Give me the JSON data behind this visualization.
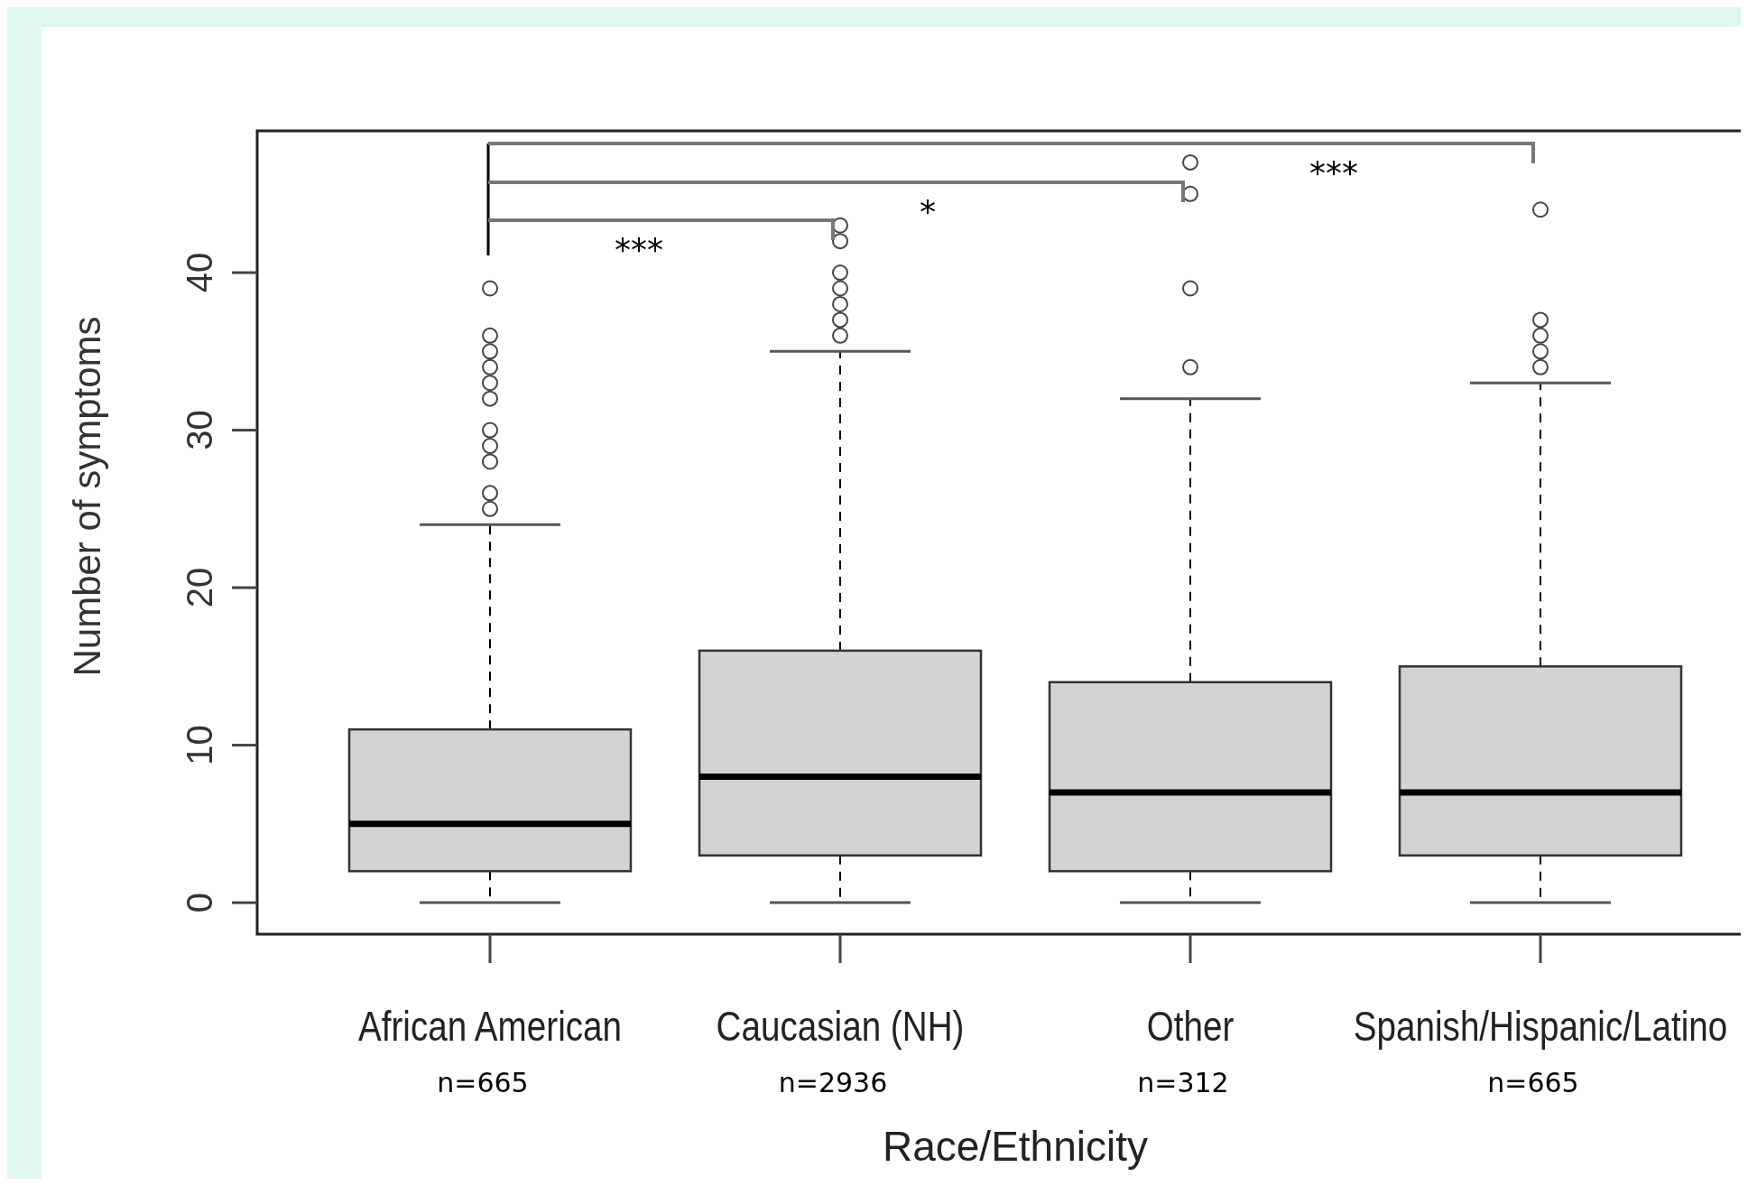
{
  "chart_data": {
    "type": "box",
    "xlabel": "Race/Ethnicity",
    "ylabel": "Number of symptoms",
    "categories": [
      "African American",
      "Caucasian (NH)",
      "Other",
      "Spanish/Hispanic/Latino"
    ],
    "boxes": [
      {
        "low": 0,
        "q1": 2,
        "median": 5,
        "q3": 11,
        "high": 24,
        "outliers": [
          25,
          26,
          28,
          29,
          30,
          32,
          33,
          34,
          35,
          36,
          39
        ]
      },
      {
        "low": 0,
        "q1": 3,
        "median": 8,
        "q3": 16,
        "high": 35,
        "outliers": [
          36,
          37,
          38,
          39,
          40,
          42,
          43
        ]
      },
      {
        "low": 0,
        "q1": 2,
        "median": 7,
        "q3": 14,
        "high": 32,
        "outliers": [
          34,
          39,
          45,
          47
        ]
      },
      {
        "low": 0,
        "q1": 3,
        "median": 7,
        "q3": 15,
        "high": 33,
        "outliers": [
          34,
          35,
          36,
          37,
          44
        ]
      }
    ],
    "color": "#d3d3d3",
    "ylim": [
      -2,
      49
    ],
    "yticks": [
      0,
      10,
      20,
      30,
      40
    ],
    "annotations": [
      "***",
      "*",
      "***",
      "n=665",
      "n=2936",
      "n=312",
      "n=665"
    ]
  }
}
